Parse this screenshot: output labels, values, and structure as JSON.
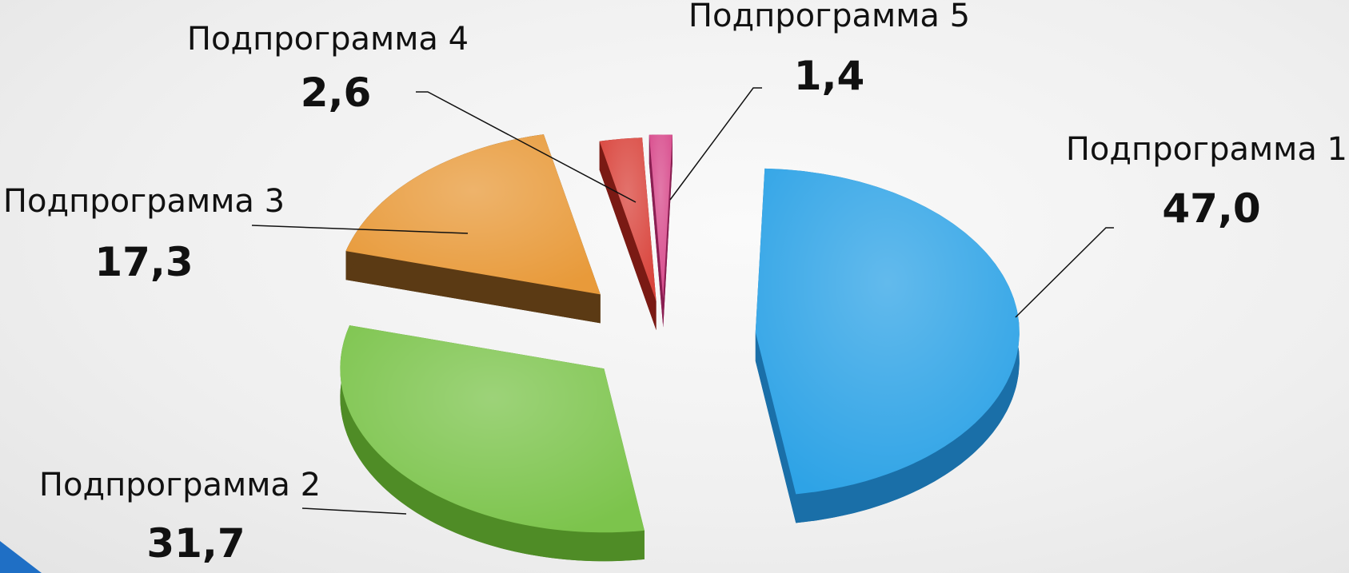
{
  "chart_data": {
    "type": "pie",
    "categories": [
      "Подпрограмма 1",
      "Подпрограмма 2",
      "Подпрограмма 3",
      "Подпрограмма 4",
      "Подпрограмма 5"
    ],
    "values": [
      47.0,
      31.7,
      17.3,
      2.6,
      1.4
    ],
    "value_labels": [
      "47,0",
      "31,7",
      "17,3",
      "2,6",
      "1,4"
    ],
    "colors": [
      "#2ea3e6",
      "#7cc44c",
      "#e89a3a",
      "#d9443c",
      "#d84b8c"
    ],
    "side_colors": [
      "#1a6fa8",
      "#4f8c26",
      "#5b3a14",
      "#7a1a14",
      "#8a1f52"
    ],
    "exploded": true,
    "style": "3d"
  }
}
